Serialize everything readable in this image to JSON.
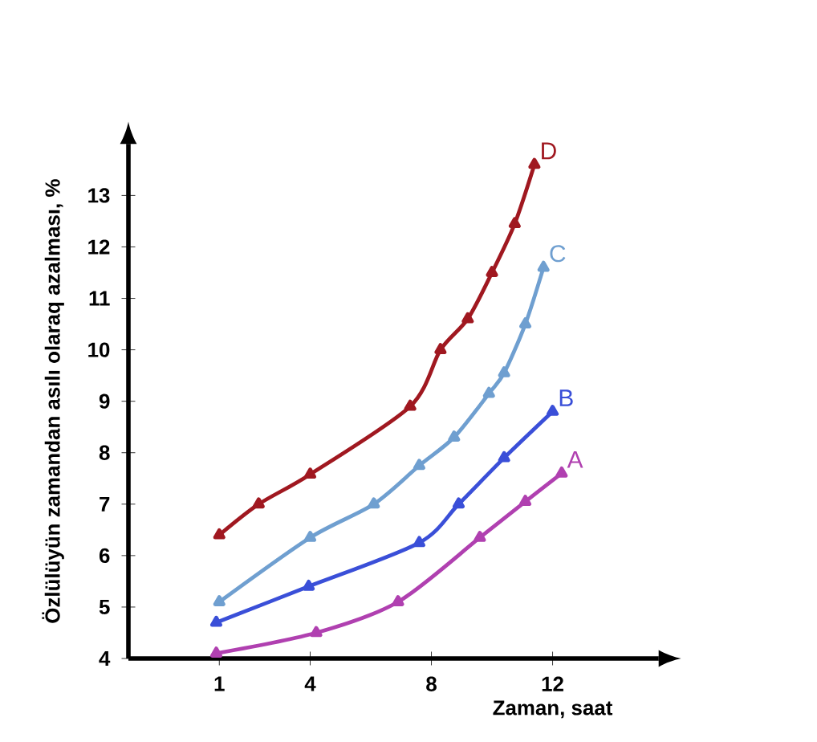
{
  "chart_data": {
    "type": "line",
    "xlabel": "Zaman, saat",
    "ylabel": "Özlülüyün zamandan asılı olaraq azalması, %",
    "xlim": [
      -2,
      15.5
    ],
    "ylim": [
      4,
      14
    ],
    "xticks": [
      1,
      4,
      8,
      12
    ],
    "yticks": [
      4,
      5,
      6,
      7,
      8,
      9,
      10,
      11,
      12,
      13
    ],
    "grid": false,
    "legend": false,
    "marker": "triangle",
    "line_style": "solid",
    "series": [
      {
        "name": "A",
        "color": "#b040b0",
        "x": [
          0.9,
          4.2,
          6.9,
          9.6,
          11.1,
          12.3
        ],
        "values": [
          4.1,
          4.5,
          5.1,
          6.35,
          7.05,
          7.6
        ]
      },
      {
        "name": "B",
        "color": "#3a4fd8",
        "x": [
          0.9,
          3.95,
          7.6,
          8.9,
          10.4,
          12
        ],
        "values": [
          4.7,
          5.4,
          6.25,
          7.0,
          7.9,
          8.8
        ]
      },
      {
        "name": "C",
        "color": "#6f9fd0",
        "x": [
          1,
          4,
          6.1,
          7.6,
          8.75,
          9.9,
          10.4,
          11.1,
          11.7
        ],
        "values": [
          5.1,
          6.35,
          7.0,
          7.75,
          8.3,
          9.15,
          9.55,
          10.5,
          11.6
        ]
      },
      {
        "name": "D",
        "color": "#a01820",
        "x": [
          1,
          2.3,
          4,
          7.3,
          8.3,
          9.2,
          10,
          10.75,
          11.4
        ],
        "values": [
          6.4,
          7.0,
          7.58,
          8.9,
          10.0,
          10.6,
          11.5,
          12.45,
          13.6
        ]
      }
    ]
  }
}
